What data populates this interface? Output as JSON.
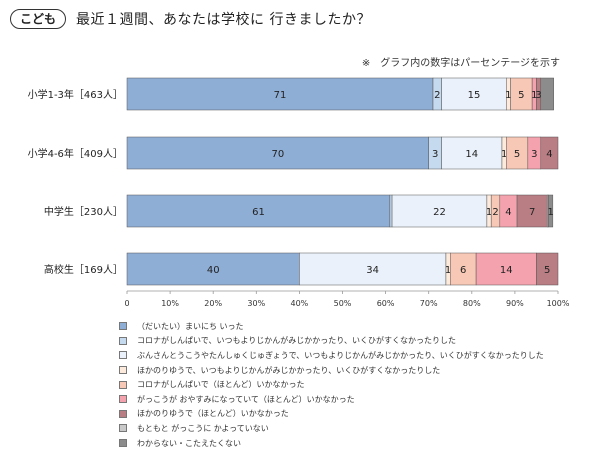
{
  "header": {
    "badge": "こども",
    "title": "最近１週間、あなたは学校に 行きましたか？"
  },
  "note": "※　グラフ内の数字はパーセンテージを示す",
  "chart_data": {
    "type": "bar",
    "orientation": "horizontal",
    "stacked": true,
    "title": "最近１週間、あなたは学校に 行きましたか？",
    "categories": [
      "小学1-3年［463人］",
      "小学4-6年［409人］",
      "中学生［230人］",
      "高校生［169人］"
    ],
    "xlim": [
      0,
      100
    ],
    "xticks": [
      "0",
      "10%",
      "20%",
      "30%",
      "40%",
      "50%",
      "60%",
      "70%",
      "80%",
      "90%",
      "100%"
    ],
    "grid": false,
    "legend_position": "bottom",
    "series": [
      {
        "name": "（だいたい）まいにち いった",
        "color": "#8eaed6",
        "values": [
          71,
          70,
          61,
          40
        ]
      },
      {
        "name": "コロナがしんぱいで、いつもよりじかんがみじかかったり、いくひがすくなかったりした",
        "color": "#c5d9ef",
        "values": [
          2,
          3,
          0.5,
          0
        ]
      },
      {
        "name": "ぶんさんとうこうやたんしゅくじゅぎょうで、いつもよりじかんがみじかかったり、いくひがすくなかったりした",
        "color": "#eaf1fa",
        "values": [
          15,
          14,
          22,
          34
        ]
      },
      {
        "name": "ほかのりゆうで、いつもよりじかんがみじかかったり、いくひがすくなかったりした",
        "color": "#fcebdd",
        "values": [
          1,
          1,
          1,
          1
        ]
      },
      {
        "name": "コロナがしんぱいで（ほとんど）いかなかった",
        "color": "#f6c8b5",
        "values": [
          5,
          5,
          2,
          6
        ]
      },
      {
        "name": "がっこうが おやすみになっていて（ほとんど）いかなかった",
        "color": "#f4a2ad",
        "values": [
          1,
          3,
          4,
          14
        ]
      },
      {
        "name": "ほかのりゆうで（ほとんど）いかなかった",
        "color": "#b97d84",
        "values": [
          1,
          4,
          7,
          5
        ]
      },
      {
        "name": "もともと がっこうに かよっていない",
        "color": "#c9c9c9",
        "values": [
          0,
          0,
          0.3,
          0
        ]
      },
      {
        "name": "わからない・こたえたくない",
        "color": "#8c8c8c",
        "values": [
          3,
          0,
          1,
          0
        ]
      }
    ],
    "data_labels": [
      [
        "71",
        "2",
        "15",
        "1",
        "5",
        "1",
        "3"
      ],
      [
        "70",
        "3",
        "14",
        "1",
        "5",
        "3",
        "4"
      ],
      [
        "61",
        "22",
        "1",
        "2",
        "4",
        "7",
        "1"
      ],
      [
        "40",
        "34",
        "1",
        "6",
        "14",
        "5"
      ]
    ]
  }
}
